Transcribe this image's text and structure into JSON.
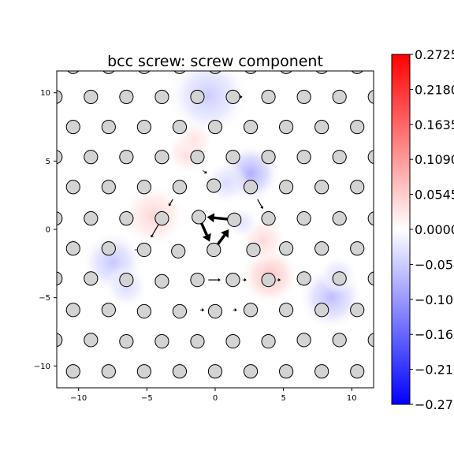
{
  "chart_data": {
    "type": "scatter",
    "title": "bcc screw: screw component",
    "xlabel": "",
    "ylabel": "",
    "xlim": [
      -11.6,
      11.6
    ],
    "ylim": [
      -11.6,
      11.6
    ],
    "x_ticks": [
      -10,
      -5,
      0,
      5,
      10
    ],
    "y_ticks": [
      -10,
      -5,
      0,
      5,
      10
    ],
    "grid": false,
    "colormap": "bwr",
    "colorbar": {
      "range": [
        -0.2725,
        0.2725
      ],
      "tick_values": [
        -0.2725,
        -0.218,
        -0.1635,
        -0.109,
        -0.0545,
        0.0,
        0.0545,
        0.109,
        0.1635,
        0.218,
        0.2725
      ],
      "tick_labels": [
        "-0.2725",
        "-0.2180",
        "-0.1635",
        "-0.1090",
        "-0.0545",
        "0.0000",
        "0.0545",
        "0.1090",
        "0.1635",
        "0.2180",
        "0.2725"
      ]
    },
    "atoms": [
      {
        "x": -10.4,
        "y": 11.9
      },
      {
        "x": -7.8,
        "y": 11.9
      },
      {
        "x": -5.2,
        "y": 11.9
      },
      {
        "x": -2.6,
        "y": 11.9
      },
      {
        "x": 0.0,
        "y": 11.9
      },
      {
        "x": 2.6,
        "y": 11.9
      },
      {
        "x": 5.2,
        "y": 11.9
      },
      {
        "x": 7.8,
        "y": 11.9
      },
      {
        "x": 10.4,
        "y": 11.9
      },
      {
        "x": -11.7,
        "y": 9.7
      },
      {
        "x": -9.1,
        "y": 9.7
      },
      {
        "x": -6.5,
        "y": 9.7
      },
      {
        "x": -3.9,
        "y": 9.7
      },
      {
        "x": -1.3,
        "y": 9.7
      },
      {
        "x": 1.3,
        "y": 9.7
      },
      {
        "x": 3.9,
        "y": 9.7
      },
      {
        "x": 6.5,
        "y": 9.7
      },
      {
        "x": 9.1,
        "y": 9.7
      },
      {
        "x": 11.7,
        "y": 9.7
      },
      {
        "x": -10.4,
        "y": 7.5
      },
      {
        "x": -7.8,
        "y": 7.5
      },
      {
        "x": -5.2,
        "y": 7.5
      },
      {
        "x": -2.6,
        "y": 7.5
      },
      {
        "x": 0.0,
        "y": 7.5
      },
      {
        "x": 2.6,
        "y": 7.5
      },
      {
        "x": 5.2,
        "y": 7.5
      },
      {
        "x": 7.8,
        "y": 7.5
      },
      {
        "x": 10.4,
        "y": 7.5
      },
      {
        "x": -11.7,
        "y": 5.3
      },
      {
        "x": -9.1,
        "y": 5.3
      },
      {
        "x": -6.5,
        "y": 5.3
      },
      {
        "x": -3.9,
        "y": 5.3
      },
      {
        "x": -1.3,
        "y": 5.3
      },
      {
        "x": 1.3,
        "y": 5.3
      },
      {
        "x": 3.9,
        "y": 5.3
      },
      {
        "x": 6.5,
        "y": 5.3
      },
      {
        "x": 9.1,
        "y": 5.3
      },
      {
        "x": 11.7,
        "y": 5.3
      },
      {
        "x": -10.4,
        "y": 3.1
      },
      {
        "x": -7.8,
        "y": 3.1
      },
      {
        "x": -5.2,
        "y": 3.1
      },
      {
        "x": -2.6,
        "y": 3.1
      },
      {
        "x": -0.1,
        "y": 3.2
      },
      {
        "x": 2.6,
        "y": 3.1
      },
      {
        "x": 5.2,
        "y": 3.1
      },
      {
        "x": 7.8,
        "y": 3.1
      },
      {
        "x": 10.4,
        "y": 3.1
      },
      {
        "x": -11.7,
        "y": 0.8
      },
      {
        "x": -9.1,
        "y": 0.8
      },
      {
        "x": -6.5,
        "y": 0.8
      },
      {
        "x": -3.9,
        "y": 0.8
      },
      {
        "x": -1.2,
        "y": 0.9
      },
      {
        "x": 1.4,
        "y": 0.7
      },
      {
        "x": 3.9,
        "y": 0.8
      },
      {
        "x": 6.5,
        "y": 0.8
      },
      {
        "x": 9.1,
        "y": 0.8
      },
      {
        "x": 11.7,
        "y": 0.8
      },
      {
        "x": -10.4,
        "y": -1.4
      },
      {
        "x": -7.8,
        "y": -1.4
      },
      {
        "x": -5.2,
        "y": -1.5
      },
      {
        "x": -2.7,
        "y": -1.6
      },
      {
        "x": -0.1,
        "y": -1.5
      },
      {
        "x": 2.8,
        "y": -1.5
      },
      {
        "x": 5.2,
        "y": -1.4
      },
      {
        "x": 7.8,
        "y": -1.4
      },
      {
        "x": 10.4,
        "y": -1.4
      },
      {
        "x": -11.7,
        "y": -3.6
      },
      {
        "x": -9.1,
        "y": -3.6
      },
      {
        "x": -6.5,
        "y": -3.7
      },
      {
        "x": -3.9,
        "y": -3.8
      },
      {
        "x": -1.3,
        "y": -3.7
      },
      {
        "x": 1.3,
        "y": -3.7
      },
      {
        "x": 3.9,
        "y": -3.7
      },
      {
        "x": 6.5,
        "y": -3.6
      },
      {
        "x": 9.1,
        "y": -3.6
      },
      {
        "x": 11.7,
        "y": -3.6
      },
      {
        "x": -10.4,
        "y": -5.9
      },
      {
        "x": -7.8,
        "y": -5.9
      },
      {
        "x": -5.2,
        "y": -6.0
      },
      {
        "x": -2.6,
        "y": -6.0
      },
      {
        "x": 0.0,
        "y": -6.0
      },
      {
        "x": 2.6,
        "y": -5.9
      },
      {
        "x": 5.2,
        "y": -5.9
      },
      {
        "x": 7.8,
        "y": -5.9
      },
      {
        "x": 10.4,
        "y": -5.9
      },
      {
        "x": -11.7,
        "y": -8.1
      },
      {
        "x": -9.1,
        "y": -8.1
      },
      {
        "x": -6.5,
        "y": -8.2
      },
      {
        "x": -3.9,
        "y": -8.2
      },
      {
        "x": -1.3,
        "y": -8.2
      },
      {
        "x": 1.3,
        "y": -8.2
      },
      {
        "x": 3.9,
        "y": -8.2
      },
      {
        "x": 6.5,
        "y": -8.1
      },
      {
        "x": 9.1,
        "y": -8.1
      },
      {
        "x": 11.7,
        "y": -8.1
      },
      {
        "x": -10.4,
        "y": -10.4
      },
      {
        "x": -7.8,
        "y": -10.4
      },
      {
        "x": -5.2,
        "y": -10.4
      },
      {
        "x": -2.6,
        "y": -10.4
      },
      {
        "x": 0.0,
        "y": -10.4
      },
      {
        "x": 2.6,
        "y": -10.4
      },
      {
        "x": 5.2,
        "y": -10.4
      },
      {
        "x": 7.8,
        "y": -10.4
      },
      {
        "x": 10.4,
        "y": -10.4
      }
    ],
    "arrows": [
      {
        "x1": 1.4,
        "y1": 0.7,
        "x2": -0.6,
        "y2": 0.9,
        "w": 3.5
      },
      {
        "x1": -1.2,
        "y1": 0.9,
        "x2": -0.4,
        "y2": -0.9,
        "w": 3.5
      },
      {
        "x1": -0.1,
        "y1": -1.5,
        "x2": 1.0,
        "y2": 0.0,
        "w": 3.5
      },
      {
        "x1": -3.9,
        "y1": 0.8,
        "x2": -4.7,
        "y2": -0.6,
        "w": 1.2
      },
      {
        "x1": -3.1,
        "y1": 2.2,
        "x2": -3.4,
        "y2": 1.7,
        "w": 1.2
      },
      {
        "x1": 3.1,
        "y1": 2.2,
        "x2": 3.5,
        "y2": 1.5,
        "w": 1.2
      },
      {
        "x1": -0.5,
        "y1": -3.7,
        "x2": 0.4,
        "y2": -3.7,
        "w": 1.2
      },
      {
        "x1": -5.9,
        "y1": -1.5,
        "x2": -5.5,
        "y2": -1.5,
        "w": 0.8
      },
      {
        "x1": -0.9,
        "y1": 4.3,
        "x2": -0.6,
        "y2": 4.1,
        "w": 0.8
      },
      {
        "x1": 2.0,
        "y1": -3.7,
        "x2": 2.3,
        "y2": -3.7,
        "w": 0.8
      },
      {
        "x1": -1.1,
        "y1": -5.9,
        "x2": -0.8,
        "y2": -5.9,
        "w": 0.8
      },
      {
        "x1": 1.3,
        "y1": -5.9,
        "x2": 1.6,
        "y2": -5.9,
        "w": 0.8
      },
      {
        "x1": 1.6,
        "y1": 9.7,
        "x2": 2.0,
        "y2": 9.7,
        "w": 0.8
      },
      {
        "x1": 4.5,
        "y1": -3.7,
        "x2": 4.8,
        "y2": -3.7,
        "w": 0.8
      }
    ],
    "field_blobs": [
      {
        "x": -4.5,
        "y": 1.0,
        "r": 2.4,
        "v": 0.045
      },
      {
        "x": -2.0,
        "y": 5.6,
        "r": 1.6,
        "v": 0.04
      },
      {
        "x": 4.0,
        "y": -3.4,
        "r": 2.2,
        "v": 0.065
      },
      {
        "x": 3.5,
        "y": -0.8,
        "r": 1.8,
        "v": 0.04
      },
      {
        "x": -1.5,
        "y": 6.6,
        "r": 1.4,
        "v": 0.03
      },
      {
        "x": -0.5,
        "y": 9.8,
        "r": 3.0,
        "v": -0.055
      },
      {
        "x": 2.6,
        "y": 4.1,
        "r": 2.2,
        "v": -0.085
      },
      {
        "x": 0.8,
        "y": 3.4,
        "r": 1.6,
        "v": -0.04
      },
      {
        "x": -7.5,
        "y": -2.4,
        "r": 2.3,
        "v": -0.06
      },
      {
        "x": -6.5,
        "y": -4.2,
        "r": 1.6,
        "v": -0.04
      },
      {
        "x": 8.5,
        "y": -5.0,
        "r": 2.4,
        "v": -0.07
      },
      {
        "x": 9.0,
        "y": -3.3,
        "r": 1.4,
        "v": -0.035
      },
      {
        "x": 2.0,
        "y": 0.5,
        "r": 1.2,
        "v": -0.03
      }
    ]
  }
}
